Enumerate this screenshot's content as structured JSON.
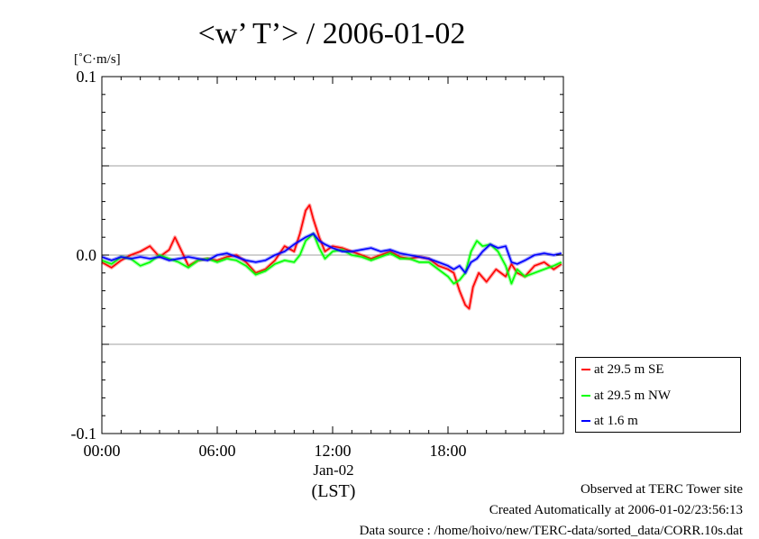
{
  "title": "<w’ T’> / 2006-01-02",
  "y_unit_label": "[˚C·m/s]",
  "legend": [
    {
      "label": "at 29.5 m SE",
      "color": "#ff0000"
    },
    {
      "label": "at 29.5 m NW",
      "color": "#00ff00"
    },
    {
      "label": "at 1.6 m",
      "color": "#0000ff"
    }
  ],
  "footer": {
    "line1": "Observed at TERC Tower site",
    "line2": "Created Automatically at 2006-01-02/23:56:13",
    "line3": "Data source : /home/hoivo/new/TERC-data/sorted_data/CORR.10s.dat"
  },
  "chart_data": {
    "type": "line",
    "title": "<w’ T’> / 2006-01-02",
    "ylabel": "[˚C·m/s]",
    "xlabel": "(LST)",
    "date_label": "Jan-02",
    "xlim": [
      0,
      24
    ],
    "ylim": [
      -0.1,
      0.1
    ],
    "x_ticks": [
      0,
      6,
      12,
      18
    ],
    "x_tick_labels": [
      "00:00",
      "06:00",
      "12:00",
      "18:00"
    ],
    "y_ticks": [
      -0.1,
      0.0,
      0.1
    ],
    "y_tick_labels": [
      "-0.1",
      "0.0",
      "0.1"
    ],
    "y_gridlines": [
      -0.05,
      0.0,
      0.05
    ],
    "legend_position": "bottom-right, outside plot",
    "series": [
      {
        "name": "at 29.5 m SE",
        "color": "#ff0000",
        "x": [
          0,
          0.5,
          1,
          1.5,
          2,
          2.5,
          3,
          3.5,
          3.8,
          4.2,
          4.5,
          5,
          5.5,
          6,
          6.5,
          7,
          7.5,
          8,
          8.5,
          9,
          9.5,
          10,
          10.3,
          10.6,
          10.8,
          11,
          11.3,
          11.6,
          12,
          12.5,
          13,
          13.5,
          14,
          14.5,
          15,
          15.5,
          16,
          16.5,
          17,
          17.5,
          18,
          18.3,
          18.6,
          18.9,
          19.1,
          19.3,
          19.6,
          20,
          20.5,
          21,
          21.3,
          21.6,
          22,
          22.5,
          23,
          23.5,
          23.9
        ],
        "values": [
          -0.004,
          -0.007,
          -0.003,
          0.0,
          0.002,
          0.005,
          -0.001,
          0.003,
          0.01,
          0.001,
          -0.006,
          -0.003,
          -0.002,
          -0.003,
          -0.001,
          0.0,
          -0.004,
          -0.01,
          -0.008,
          -0.003,
          0.005,
          0.002,
          0.012,
          0.025,
          0.028,
          0.02,
          0.01,
          0.002,
          0.005,
          0.004,
          0.002,
          0.0,
          -0.002,
          0.0,
          0.002,
          -0.001,
          -0.002,
          -0.001,
          -0.002,
          -0.006,
          -0.008,
          -0.01,
          -0.02,
          -0.028,
          -0.03,
          -0.018,
          -0.01,
          -0.015,
          -0.008,
          -0.012,
          -0.005,
          -0.01,
          -0.012,
          -0.006,
          -0.004,
          -0.008,
          -0.005
        ]
      },
      {
        "name": "at 29.5 m NW",
        "color": "#00ff00",
        "x": [
          0,
          0.5,
          1,
          1.5,
          2,
          2.5,
          3,
          3.5,
          4,
          4.5,
          5,
          5.5,
          6,
          6.5,
          7,
          7.5,
          8,
          8.5,
          9,
          9.5,
          10,
          10.3,
          10.6,
          11,
          11.3,
          11.6,
          12,
          12.5,
          13,
          13.5,
          14,
          14.5,
          15,
          15.5,
          16,
          16.5,
          17,
          17.5,
          18,
          18.3,
          18.6,
          18.9,
          19.2,
          19.5,
          19.8,
          20.2,
          20.6,
          21,
          21.3,
          21.6,
          22,
          22.5,
          23,
          23.5,
          23.9
        ],
        "values": [
          -0.003,
          -0.005,
          -0.001,
          -0.002,
          -0.006,
          -0.004,
          0.0,
          -0.002,
          -0.004,
          -0.007,
          -0.003,
          -0.002,
          -0.004,
          -0.002,
          -0.003,
          -0.006,
          -0.011,
          -0.009,
          -0.005,
          -0.003,
          -0.004,
          0.0,
          0.008,
          0.012,
          0.004,
          -0.002,
          0.002,
          0.003,
          0.0,
          -0.001,
          -0.003,
          -0.001,
          0.001,
          -0.002,
          -0.002,
          -0.004,
          -0.004,
          -0.008,
          -0.012,
          -0.016,
          -0.014,
          -0.01,
          0.002,
          0.008,
          0.005,
          0.006,
          0.002,
          -0.006,
          -0.016,
          -0.008,
          -0.012,
          -0.01,
          -0.008,
          -0.006,
          -0.004
        ]
      },
      {
        "name": "at 1.6 m",
        "color": "#0000ff",
        "x": [
          0,
          0.5,
          1,
          1.5,
          2,
          2.5,
          3,
          3.5,
          4,
          4.5,
          5,
          5.5,
          6,
          6.5,
          7,
          7.5,
          8,
          8.5,
          9,
          9.5,
          10,
          10.3,
          10.6,
          11,
          11.3,
          11.6,
          12,
          12.5,
          13,
          13.5,
          14,
          14.5,
          15,
          15.5,
          16,
          16.5,
          17,
          17.5,
          18,
          18.3,
          18.6,
          18.9,
          19.2,
          19.5,
          19.8,
          20.2,
          20.6,
          21,
          21.3,
          21.6,
          22,
          22.5,
          23,
          23.5,
          23.9
        ],
        "values": [
          -0.001,
          -0.003,
          -0.001,
          -0.002,
          -0.001,
          -0.002,
          -0.001,
          -0.003,
          -0.002,
          -0.001,
          -0.002,
          -0.003,
          0.0,
          0.001,
          -0.001,
          -0.003,
          -0.004,
          -0.003,
          0.0,
          0.002,
          0.006,
          0.008,
          0.01,
          0.012,
          0.008,
          0.006,
          0.004,
          0.002,
          0.002,
          0.003,
          0.004,
          0.002,
          0.003,
          0.001,
          0.0,
          -0.001,
          -0.002,
          -0.004,
          -0.006,
          -0.008,
          -0.006,
          -0.01,
          -0.004,
          -0.002,
          0.002,
          0.006,
          0.004,
          0.005,
          -0.004,
          -0.005,
          -0.003,
          0.0,
          0.001,
          0.0,
          0.001
        ]
      }
    ]
  }
}
